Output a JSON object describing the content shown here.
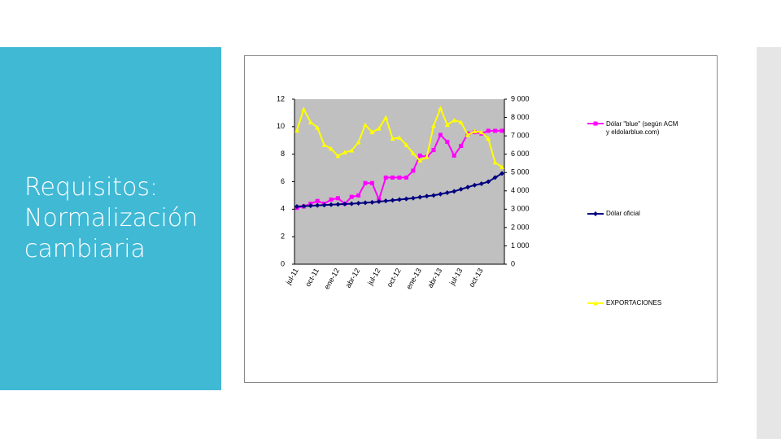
{
  "slide": {
    "title_lines": [
      "Requisitos:",
      "Normalización",
      "cambiaria"
    ]
  },
  "chart_data": {
    "type": "line",
    "categories": [
      "jul-11",
      null,
      null,
      "oct-11",
      null,
      null,
      "ene-12",
      null,
      null,
      "abr-12",
      null,
      null,
      "jul-12",
      null,
      null,
      "oct-12",
      null,
      null,
      "ene-13",
      null,
      null,
      "abr-13",
      null,
      null,
      "jul-13",
      null,
      null,
      "oct-13",
      null,
      null,
      null
    ],
    "ylim": [
      0,
      12
    ],
    "yticks": [
      0,
      2,
      4,
      6,
      8,
      10,
      12
    ],
    "y2lim": [
      0,
      9000
    ],
    "y2ticks": [
      0,
      {
        "value": 1000,
        "label": "1 000"
      },
      {
        "value": 2000,
        "label": "2 000"
      },
      {
        "value": 3000,
        "label": "3 000"
      },
      {
        "value": 4000,
        "label": "4 000"
      },
      {
        "value": 5000,
        "label": "5 000"
      },
      {
        "value": 6000,
        "label": "6 000"
      },
      {
        "value": 7000,
        "label": "7 000"
      },
      {
        "value": 8000,
        "label": "8 000"
      },
      {
        "value": 9000,
        "label": "9 000"
      }
    ],
    "series": [
      {
        "name": "Dólar \"blue\" (según ACM y eldolarblue.com)",
        "color": "#ff00ff",
        "marker": "square",
        "values": [
          4.1,
          4.2,
          4.4,
          4.6,
          4.4,
          4.7,
          4.8,
          4.4,
          4.9,
          5.0,
          5.9,
          5.9,
          4.7,
          6.3,
          6.3,
          6.3,
          6.3,
          6.8,
          7.9,
          7.8,
          8.3,
          9.4,
          8.9,
          7.9,
          8.6,
          9.5,
          9.6,
          9.5,
          9.7,
          9.7,
          9.7
        ]
      },
      {
        "name": "Dólar oficial",
        "color": "#000080",
        "marker": "diamond",
        "values": [
          4.2,
          4.22,
          4.25,
          4.28,
          4.3,
          4.33,
          4.35,
          4.38,
          4.4,
          4.43,
          4.47,
          4.5,
          4.55,
          4.6,
          4.65,
          4.7,
          4.75,
          4.8,
          4.88,
          4.95,
          5.0,
          5.1,
          5.2,
          5.3,
          5.45,
          5.6,
          5.75,
          5.85,
          6.0,
          6.3,
          6.6
        ]
      },
      {
        "name": "EXPORTACIONES",
        "color": "#ffff00",
        "marker": "triangle",
        "axis": "y2",
        "values": [
          7300,
          8450,
          7750,
          7450,
          6500,
          6300,
          5900,
          6100,
          6200,
          6650,
          7600,
          7200,
          7400,
          8000,
          6850,
          6900,
          6500,
          6050,
          5650,
          5850,
          7550,
          8500,
          7600,
          7850,
          7750,
          7050,
          7250,
          7200,
          6850,
          5550,
          5300
        ]
      }
    ]
  }
}
